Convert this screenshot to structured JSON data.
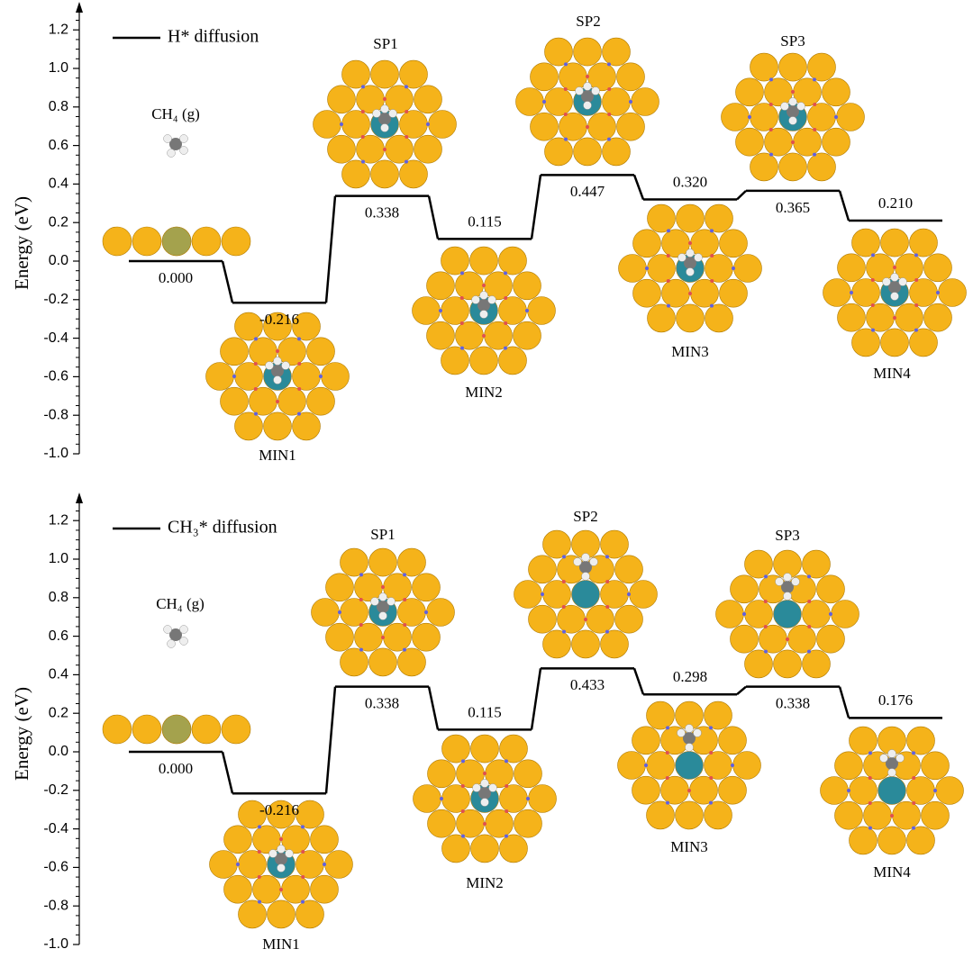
{
  "chart_data": [
    {
      "type": "profile",
      "legend": "H* diffusion",
      "ylabel": "Energy (eV)",
      "categories": [
        "CH₄ (g)",
        "MIN1",
        "SP1",
        "MIN2",
        "SP2",
        "MIN3",
        "SP3",
        "MIN4"
      ],
      "values": [
        0.0,
        -0.216,
        0.338,
        0.115,
        0.447,
        0.32,
        0.365,
        0.21
      ],
      "value_labels": [
        "0.000",
        "-0.216",
        "0.338",
        "0.115",
        "0.447",
        "0.320",
        "0.365",
        "0.210"
      ],
      "color": "#000000",
      "ylim": [
        -1.0,
        1.3
      ],
      "yticks": [
        {
          "value": -1,
          "label": "-1.0"
        },
        -0.8,
        -0.6,
        -0.4,
        -0.2,
        {
          "value": 0,
          "label": "0.0"
        },
        0.2,
        0.4,
        0.6,
        0.8,
        {
          "value": 1,
          "label": "1.0"
        },
        1.2
      ]
    },
    {
      "type": "profile",
      "legend": "CH₃* diffusion",
      "ylabel": "Energy (eV)",
      "categories": [
        "CH₄ (g)",
        "MIN1",
        "SP1",
        "MIN2",
        "SP2",
        "MIN3",
        "SP3",
        "MIN4"
      ],
      "values": [
        0.0,
        -0.216,
        0.338,
        0.115,
        0.433,
        0.298,
        0.338,
        0.176
      ],
      "value_labels": [
        "0.000",
        "-0.216",
        "0.338",
        "0.115",
        "0.433",
        "0.298",
        "0.338",
        "0.176"
      ],
      "color": "#000000",
      "ylim": [
        -1.0,
        1.3
      ],
      "yticks": [
        {
          "value": -1,
          "label": "-1.0"
        },
        -0.8,
        -0.6,
        -0.4,
        -0.2,
        {
          "value": 0,
          "label": "0.0"
        },
        0.2,
        0.4,
        0.6,
        0.8,
        {
          "value": 1,
          "label": "1.0"
        },
        1.2
      ]
    }
  ]
}
